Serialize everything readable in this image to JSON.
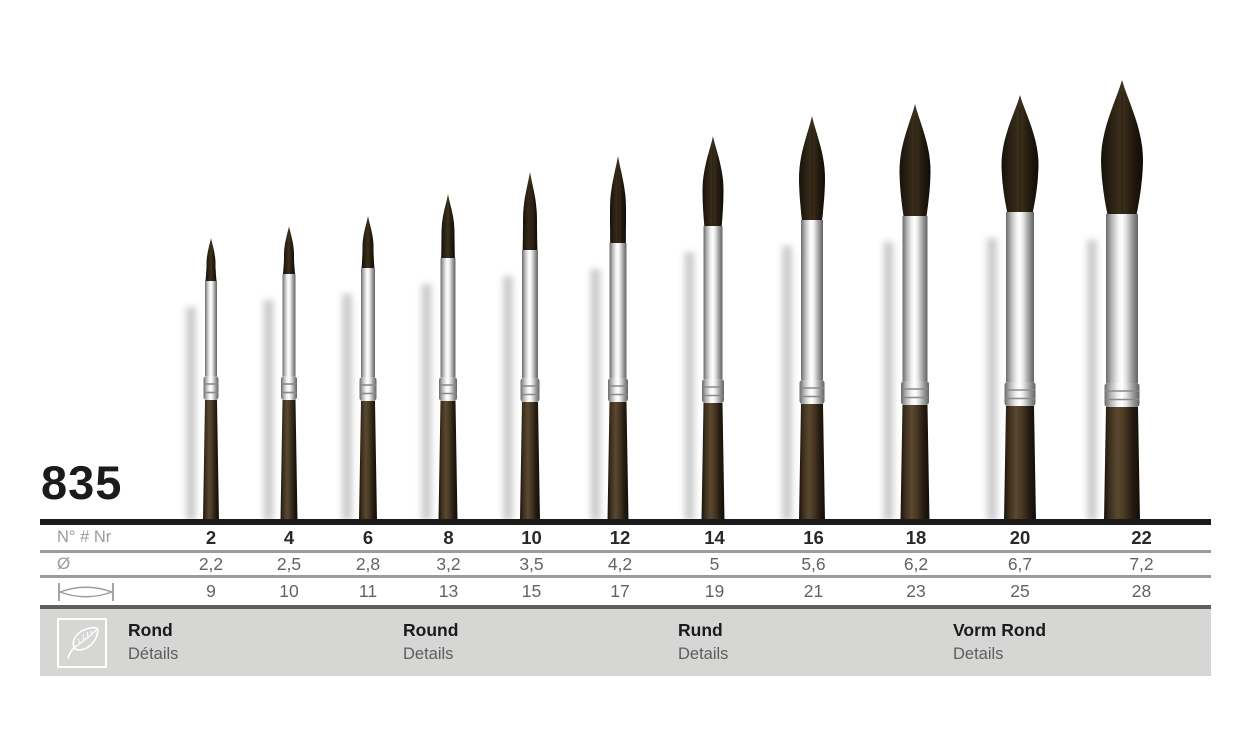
{
  "product": {
    "model": "835"
  },
  "table": {
    "row_label_number": "N° # Nr",
    "row_label_diameter": "Ø",
    "sizes": [
      "2",
      "4",
      "6",
      "8",
      "10",
      "12",
      "14",
      "16",
      "18",
      "20",
      "22"
    ],
    "diameters": [
      "2,2",
      "2,5",
      "2,8",
      "3,2",
      "3,5",
      "4,2",
      "5",
      "5,6",
      "6,2",
      "6,7",
      "7,2"
    ],
    "hair_lengths": [
      "9",
      "10",
      "11",
      "13",
      "15",
      "17",
      "19",
      "21",
      "23",
      "25",
      "28"
    ]
  },
  "footer": {
    "icon": "leaf-icon",
    "languages": [
      {
        "name": "Rond",
        "details": "Détails"
      },
      {
        "name": "Round",
        "details": "Details"
      },
      {
        "name": "Rund",
        "details": "Details"
      },
      {
        "name": "Vorm Rond",
        "details": "Details"
      }
    ]
  },
  "colors": {
    "footer_bar": "#d6d6d4",
    "table_top_line": "#1b1b1b",
    "table_gray_line": "#9b9b9b",
    "text_dark": "#2b2728",
    "text_gray": "#636366",
    "label_gray": "#9b9b9b",
    "handle_brown": "#4a3a25",
    "hair_brown": "#2e2415",
    "ferrule_chrome": "#e8e8e8"
  }
}
